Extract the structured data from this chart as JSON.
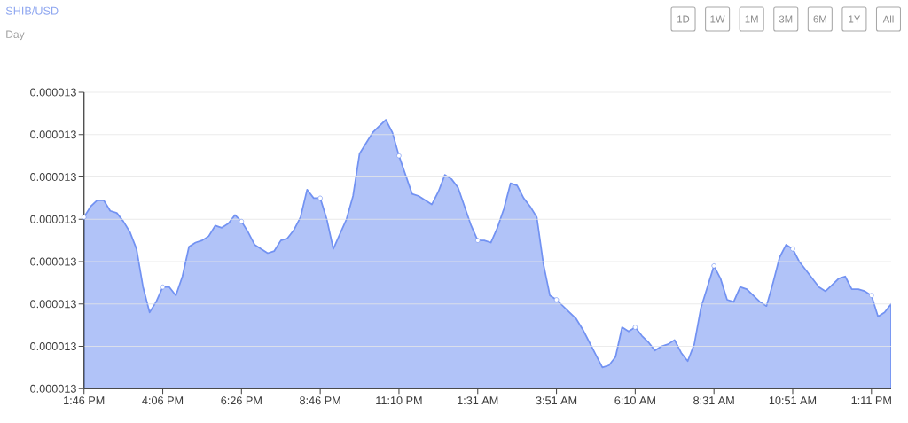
{
  "chart_data": {
    "type": "area",
    "title": "SHIB/USD",
    "subtitle": "Day",
    "annotations": [
      "1D",
      "1W",
      "1M",
      "3M",
      "6M",
      "1Y",
      "All"
    ],
    "categories": [
      "1:46 PM",
      null,
      null,
      null,
      null,
      null,
      null,
      null,
      null,
      null,
      null,
      null,
      "4:06 PM",
      null,
      null,
      null,
      null,
      null,
      null,
      null,
      null,
      null,
      null,
      null,
      "6:26 PM",
      null,
      null,
      null,
      null,
      null,
      null,
      null,
      null,
      null,
      null,
      null,
      "8:46 PM",
      null,
      null,
      null,
      null,
      null,
      null,
      null,
      null,
      null,
      null,
      null,
      "11:10 PM",
      null,
      null,
      null,
      null,
      null,
      null,
      null,
      null,
      null,
      null,
      null,
      "1:31 AM",
      null,
      null,
      null,
      null,
      null,
      null,
      null,
      null,
      null,
      null,
      null,
      "3:51 AM",
      null,
      null,
      null,
      null,
      null,
      null,
      null,
      null,
      null,
      null,
      null,
      "6:10 AM",
      null,
      null,
      null,
      null,
      null,
      null,
      null,
      null,
      null,
      null,
      null,
      "8:31 AM",
      null,
      null,
      null,
      null,
      null,
      null,
      null,
      null,
      null,
      null,
      null,
      "10:51 AM",
      null,
      null,
      null,
      null,
      null,
      null,
      null,
      null,
      null,
      null,
      null,
      "1:11 PM",
      null,
      null,
      null
    ],
    "series": [
      {
        "color": "#7292f2",
        "values": [
          1.3041e-05,
          1.3046e-05,
          1.3049e-05,
          1.3049e-05,
          1.3044e-05,
          1.3043e-05,
          1.3039e-05,
          1.3034e-05,
          1.3026e-05,
          1.3008e-05,
          1.2996e-05,
          1.3001e-05,
          1.3008e-05,
          1.3008e-05,
          1.3004e-05,
          1.3013e-05,
          1.3027e-05,
          1.3029e-05,
          1.303e-05,
          1.3032e-05,
          1.3037e-05,
          1.3036e-05,
          1.3038e-05,
          1.3042e-05,
          1.3039e-05,
          1.3034e-05,
          1.3028e-05,
          1.3026e-05,
          1.3024e-05,
          1.3025e-05,
          1.303e-05,
          1.3031e-05,
          1.3035e-05,
          1.3041e-05,
          1.3054e-05,
          1.305e-05,
          1.305e-05,
          1.304e-05,
          1.3026e-05,
          1.3033e-05,
          1.304e-05,
          1.3051e-05,
          1.3071e-05,
          1.3076e-05,
          1.3081e-05,
          1.3084e-05,
          1.3087e-05,
          1.3081e-05,
          1.307e-05,
          1.3061e-05,
          1.3052e-05,
          1.3051e-05,
          1.3049e-05,
          1.3047e-05,
          1.3053e-05,
          1.3061e-05,
          1.3059e-05,
          1.3055e-05,
          1.3046e-05,
          1.3037e-05,
          1.303e-05,
          1.303e-05,
          1.3029e-05,
          1.3036e-05,
          1.3045e-05,
          1.3057e-05,
          1.3056e-05,
          1.305e-05,
          1.3046e-05,
          1.3041e-05,
          1.3019e-05,
          1.3004e-05,
          1.3002e-05,
          1.2999e-05,
          1.2996e-05,
          1.2993e-05,
          1.2988e-05,
          1.2982e-05,
          1.2976e-05,
          1.297e-05,
          1.2971e-05,
          1.2975e-05,
          1.2989e-05,
          1.2987e-05,
          1.2989e-05,
          1.2985e-05,
          1.2982e-05,
          1.2978e-05,
          1.298e-05,
          1.2981e-05,
          1.2983e-05,
          1.2977e-05,
          1.2973e-05,
          1.2981e-05,
          1.2998e-05,
          1.3008e-05,
          1.3018e-05,
          1.3012e-05,
          1.3002e-05,
          1.3001e-05,
          1.3008e-05,
          1.3007e-05,
          1.3004e-05,
          1.3001e-05,
          1.2999e-05,
          1.301e-05,
          1.3022e-05,
          1.3028e-05,
          1.3026e-05,
          1.302e-05,
          1.3016e-05,
          1.3012e-05,
          1.3008e-05,
          1.3006e-05,
          1.3009e-05,
          1.3012e-05,
          1.3013e-05,
          1.3007e-05,
          1.3007e-05,
          1.3006e-05,
          1.3004e-05,
          1.2994e-05,
          1.2996e-05,
          1.3e-05
        ]
      },
      {
        "type": "scatter",
        "color": "#ffffff",
        "marker": "circle",
        "x": [
          "1:46 PM",
          "4:06 PM",
          "6:26 PM",
          "8:46 PM",
          "11:10 PM",
          "1:31 AM",
          "3:51 AM",
          "6:10 AM",
          "8:31 AM",
          "10:51 AM",
          "1:11 PM"
        ],
        "values": [
          1.3041e-05,
          1.3008e-05,
          1.3039e-05,
          1.305e-05,
          1.307e-05,
          1.303e-05,
          1.3002e-05,
          1.2989e-05,
          1.3018e-05,
          1.3026e-05,
          1.3004e-05
        ]
      }
    ],
    "ylim": [
      1.296e-05,
      1.31e-05
    ],
    "yticks": [
      {
        "value": 1.296e-05,
        "label": "0.000013"
      },
      {
        "value": 1.298e-05,
        "label": "0.000013"
      },
      {
        "value": 1.3e-05,
        "label": "0.000013"
      },
      {
        "value": 1.302e-05,
        "label": "0.000013"
      },
      {
        "value": 1.304e-05,
        "label": "0.000013"
      },
      {
        "value": 1.306e-05,
        "label": "0.000013"
      },
      {
        "value": 1.308e-05,
        "label": "0.000013"
      },
      {
        "value": 1.31e-05,
        "label": "0.000013"
      }
    ],
    "grid": "y"
  }
}
